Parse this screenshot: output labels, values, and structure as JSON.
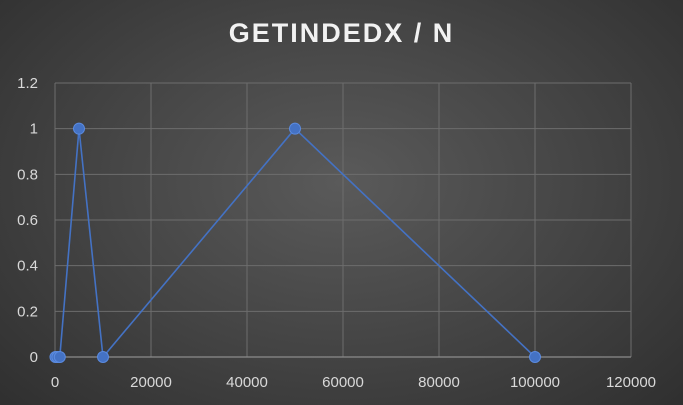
{
  "chart_data": {
    "type": "scatter",
    "title": "GETINDEDX / N",
    "xlabel": "",
    "ylabel": "",
    "xlim": [
      0,
      120000
    ],
    "ylim": [
      0,
      1.2
    ],
    "x_ticks": [
      0,
      20000,
      40000,
      60000,
      80000,
      100000,
      120000
    ],
    "y_ticks": [
      0,
      0.2,
      0.4,
      0.6,
      0.8,
      1,
      1.2
    ],
    "grid": true,
    "legend": "none",
    "series": [
      {
        "x": [
          100,
          500,
          1000,
          5000,
          10000,
          50000,
          100000
        ],
        "y": [
          0,
          0,
          0,
          1,
          0,
          1,
          0
        ]
      }
    ],
    "colors": {
      "line": "#4472c4",
      "marker": "#4472c4",
      "grid": "#6d6d6d",
      "axis": "#8c8c8c"
    }
  }
}
